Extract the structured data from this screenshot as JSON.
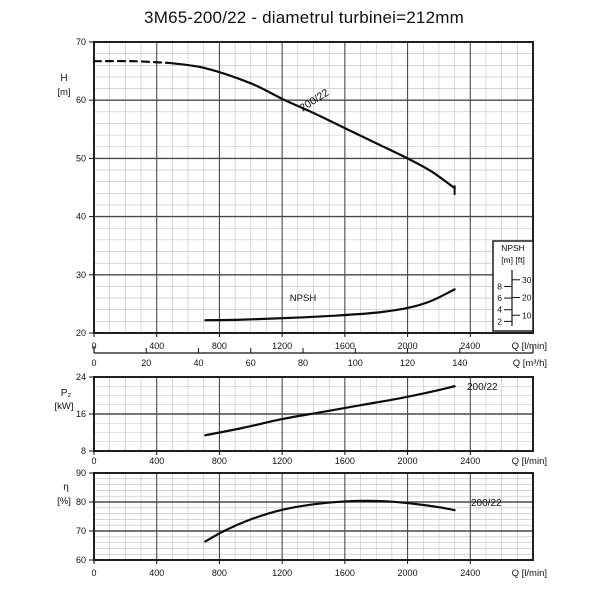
{
  "title": "3M65-200/22 - diametrul turbinei=212mm",
  "colors": {
    "background": "#ffffff",
    "ink": "#111111",
    "curve": "#0d0d0d",
    "grid_minor": "#bfbfbf",
    "grid_major": "#4a4a4a",
    "border": "#1f1f1f"
  },
  "x_axis": {
    "unit_lmin": "Q [l/min]",
    "unit_m3h": "Q [m³/h]",
    "ticks_lmin": [
      0,
      400,
      800,
      1200,
      1600,
      2000,
      2400
    ],
    "ticks_m3h": [
      0,
      20,
      40,
      60,
      80,
      100,
      120,
      140
    ],
    "range_lmin": [
      0,
      2800
    ],
    "minor_step_lmin": 100
  },
  "chart_data": [
    {
      "type": "line",
      "id": "head",
      "ylabel": "H",
      "yunit": "[m]",
      "ylim": [
        20,
        70
      ],
      "yticks": [
        70,
        60,
        50,
        40,
        30,
        20
      ],
      "y_minor_step": 2,
      "xlabel": "Q [l/min]",
      "grid": "on",
      "series": [
        {
          "name": "200/22",
          "label": "200/22",
          "dashed_until_q": 480,
          "end_cap": true,
          "points": [
            [
              0,
              66.7
            ],
            [
              250,
              66.7
            ],
            [
              480,
              66.4
            ],
            [
              710,
              65.5
            ],
            [
              1000,
              62.9
            ],
            [
              1210,
              60.1
            ],
            [
              1400,
              57.8
            ],
            [
              1600,
              55.2
            ],
            [
              1800,
              52.6
            ],
            [
              2000,
              50.0
            ],
            [
              2150,
              47.8
            ],
            [
              2300,
              44.9
            ]
          ]
        },
        {
          "name": "NPSH",
          "label": "NPSH",
          "unit": "m",
          "plot_offset": 20,
          "points": [
            [
              710,
              2.2
            ],
            [
              950,
              2.3
            ],
            [
              1250,
              2.6
            ],
            [
              1550,
              3.0
            ],
            [
              1800,
              3.5
            ],
            [
              2000,
              4.3
            ],
            [
              2150,
              5.5
            ],
            [
              2300,
              7.5
            ]
          ]
        }
      ],
      "inset": {
        "title": "NPSH",
        "col_units": [
          "[m]",
          "[ft]"
        ],
        "m_ticks": [
          8,
          6,
          4,
          2
        ],
        "ft_ticks": [
          30,
          20,
          10
        ]
      }
    },
    {
      "type": "line",
      "id": "power",
      "ylabel": "P₂",
      "yunit": "[kW]",
      "ylim": [
        8,
        24
      ],
      "yticks": [
        24,
        16,
        8
      ],
      "y_minor_step": 2,
      "xlabel": "Q [l/min]",
      "grid": "on",
      "series": [
        {
          "name": "200/22",
          "label": "200/22",
          "points": [
            [
              710,
              11.4
            ],
            [
              950,
              13.0
            ],
            [
              1200,
              14.9
            ],
            [
              1450,
              16.4
            ],
            [
              1700,
              17.9
            ],
            [
              1950,
              19.4
            ],
            [
              2150,
              20.8
            ],
            [
              2300,
              22.0
            ]
          ]
        }
      ]
    },
    {
      "type": "line",
      "id": "efficiency",
      "ylabel": "η",
      "yunit": "[%]",
      "ylim": [
        60,
        90
      ],
      "yticks": [
        90,
        80,
        70,
        60
      ],
      "y_minor_step": 2,
      "xlabel": "Q [l/min]",
      "grid": "on",
      "series": [
        {
          "name": "200/22",
          "label": "200/22",
          "points": [
            [
              710,
              66.4
            ],
            [
              830,
              70.0
            ],
            [
              1000,
              74.0
            ],
            [
              1200,
              77.3
            ],
            [
              1400,
              79.2
            ],
            [
              1600,
              80.2
            ],
            [
              1750,
              80.4
            ],
            [
              1900,
              80.1
            ],
            [
              2050,
              79.3
            ],
            [
              2200,
              78.2
            ],
            [
              2300,
              77.2
            ]
          ]
        }
      ]
    }
  ]
}
